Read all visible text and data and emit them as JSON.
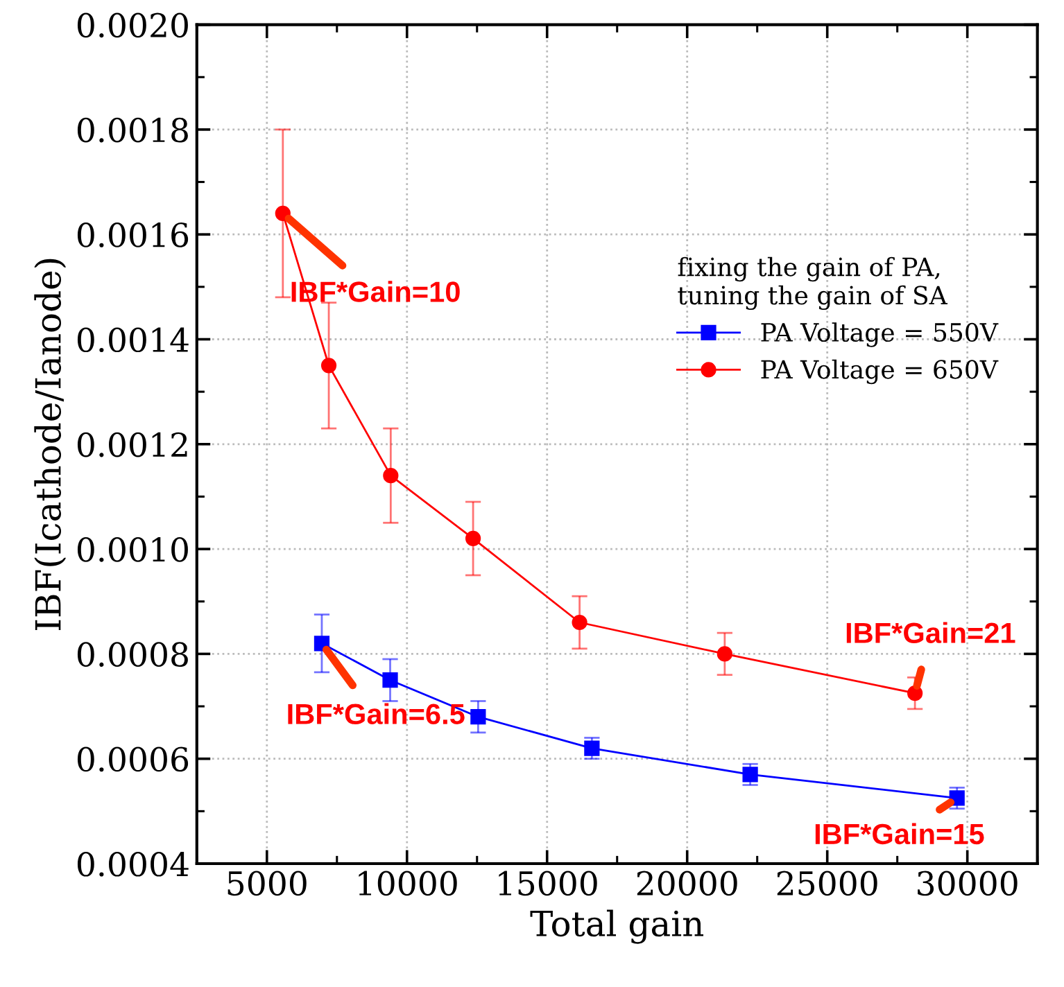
{
  "chart_data": {
    "type": "line",
    "xlabel": "Total gain",
    "ylabel": "IBF(Icathode/Ianode)",
    "legend_title": "fixing the gain of PA,\ntuning the gain of SA",
    "legend": "top right",
    "grid": true,
    "line_style": "solid",
    "xlim": [
      2500,
      32500
    ],
    "xticks": [
      5000,
      10000,
      15000,
      20000,
      25000,
      30000
    ],
    "ylim": [
      0.0004,
      0.002
    ],
    "yticks": [
      {
        "value": 0.0004,
        "label": "0.0004"
      },
      {
        "value": 0.0006,
        "label": "0.0006"
      },
      {
        "value": 0.0008,
        "label": "0.0008"
      },
      {
        "value": 0.001,
        "label": "0.0010"
      },
      {
        "value": 0.0012,
        "label": "0.0012"
      },
      {
        "value": 0.0014,
        "label": "0.0014"
      },
      {
        "value": 0.0016,
        "label": "0.0016"
      },
      {
        "value": 0.0018,
        "label": "0.0018"
      },
      {
        "value": 0.002,
        "label": "0.0020"
      }
    ],
    "series": [
      {
        "name": "PA Voltage = 550V",
        "color": "#0000ff",
        "marker": "square",
        "x": [
          6960,
          9400,
          12540,
          16600,
          22250,
          29630
        ],
        "values": [
          0.00082,
          0.00075,
          0.00068,
          0.00062,
          0.00057,
          0.000525
        ],
        "errors": [
          5.5e-05,
          4e-05,
          3e-05,
          2e-05,
          2e-05,
          2e-05
        ]
      },
      {
        "name": "PA Voltage = 650V",
        "color": "#ff0000",
        "marker": "circle",
        "x": [
          5570,
          7210,
          9420,
          12360,
          16160,
          21340,
          28130
        ],
        "values": [
          0.00164,
          0.00135,
          0.00114,
          0.00102,
          0.00086,
          0.0008,
          0.000725
        ],
        "errors": [
          0.00016,
          0.00012,
          9e-05,
          7e-05,
          5e-05,
          4e-05,
          3e-05
        ]
      }
    ],
    "annotations": [
      {
        "text": "IBF*Gain=10",
        "x": 5570,
        "y": 0.00164
      },
      {
        "text": "IBF*Gain=6.5",
        "x": 6960,
        "y": 0.00082
      },
      {
        "text": "IBF*Gain=21",
        "x": 28130,
        "y": 0.000725
      },
      {
        "text": "IBF*Gain=15",
        "x": 29630,
        "y": 0.000525
      }
    ]
  }
}
